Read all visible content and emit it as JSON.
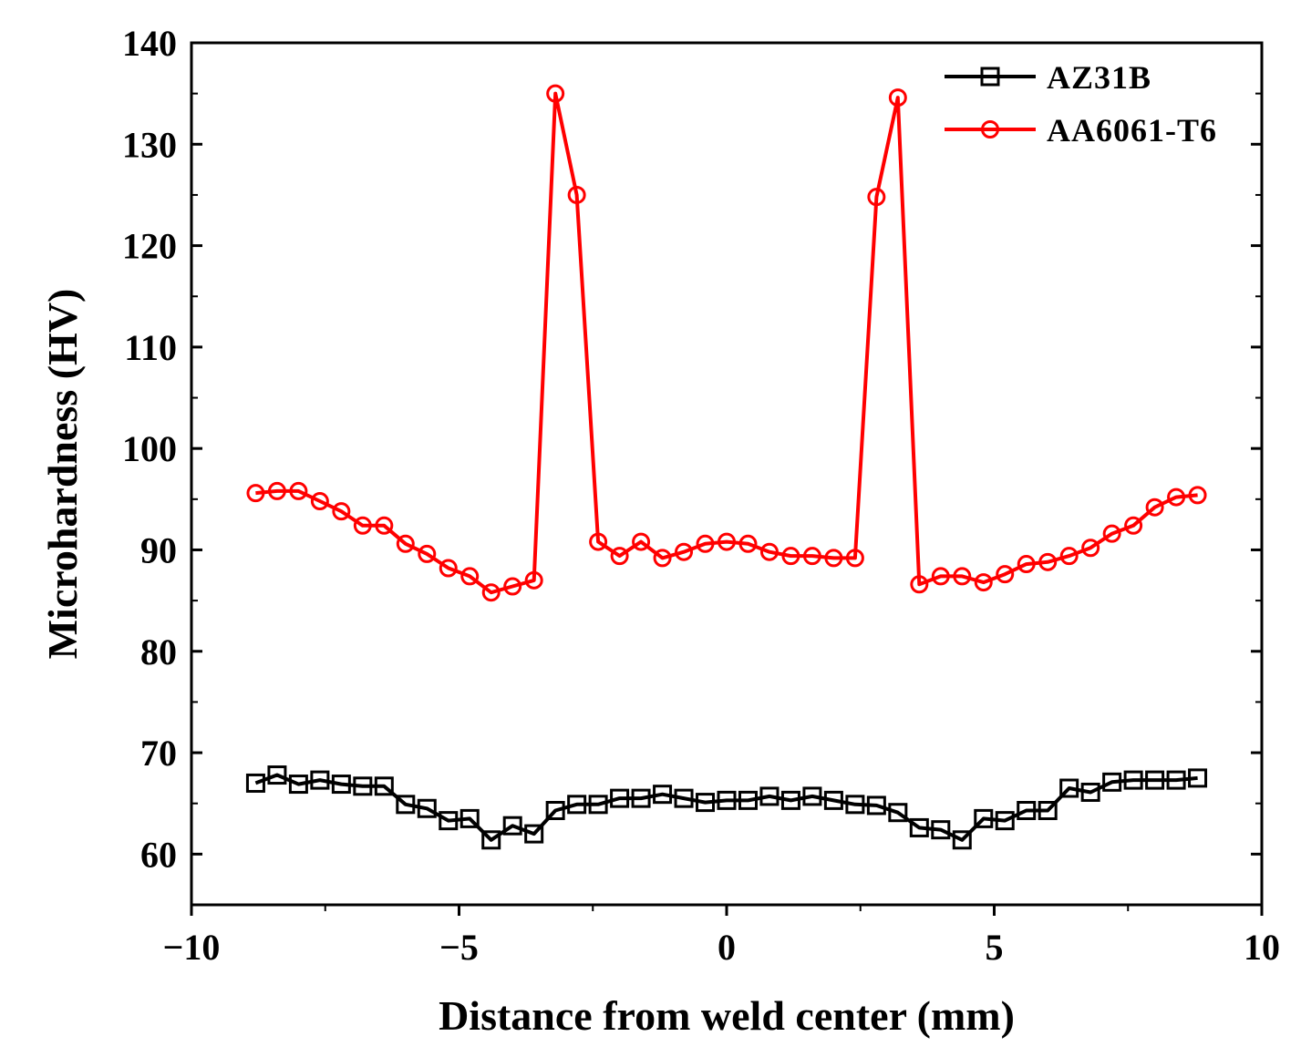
{
  "chart_data": {
    "type": "line",
    "title": "",
    "xlabel": "Distance from weld center (mm)",
    "ylabel": "Microhardness (HV)",
    "xlim": [
      -10,
      10
    ],
    "ylim": [
      55,
      140
    ],
    "x_ticks": [
      -10,
      -5,
      0,
      5,
      10
    ],
    "x_tick_labels": [
      "−10",
      "−5",
      "0",
      "5",
      "10"
    ],
    "y_ticks": [
      60,
      70,
      80,
      90,
      100,
      110,
      120,
      130,
      140
    ],
    "y_tick_labels": [
      "60",
      "70",
      "80",
      "90",
      "100",
      "110",
      "120",
      "130",
      "140"
    ],
    "grid": false,
    "legend_position": "top-right",
    "series": [
      {
        "name": "AZ31B",
        "color": "#000000",
        "marker": "square",
        "x": [
          -8.8,
          -8.4,
          -8.0,
          -7.6,
          -7.2,
          -6.8,
          -6.4,
          -6.0,
          -5.6,
          -5.2,
          -4.8,
          -4.4,
          -4.0,
          -3.6,
          -3.2,
          -2.8,
          -2.4,
          -2.0,
          -1.6,
          -1.2,
          -0.8,
          -0.4,
          0.0,
          0.4,
          0.8,
          1.2,
          1.6,
          2.0,
          2.4,
          2.8,
          3.2,
          3.6,
          4.0,
          4.4,
          4.8,
          5.2,
          5.6,
          6.0,
          6.4,
          6.8,
          7.2,
          7.6,
          8.0,
          8.4,
          8.8
        ],
        "values": [
          67.0,
          67.8,
          66.9,
          67.3,
          66.9,
          66.7,
          66.7,
          64.9,
          64.5,
          63.3,
          63.5,
          61.4,
          62.8,
          62.0,
          64.3,
          64.9,
          64.9,
          65.5,
          65.5,
          65.9,
          65.5,
          65.1,
          65.3,
          65.3,
          65.7,
          65.3,
          65.7,
          65.3,
          64.9,
          64.8,
          64.1,
          62.6,
          62.4,
          61.4,
          63.5,
          63.3,
          64.3,
          64.3,
          66.5,
          66.1,
          67.1,
          67.3,
          67.3,
          67.3,
          67.5
        ]
      },
      {
        "name": "AA6061-T6",
        "color": "#ff0000",
        "marker": "circle",
        "x": [
          -8.8,
          -8.4,
          -8.0,
          -7.6,
          -7.2,
          -6.8,
          -6.4,
          -6.0,
          -5.6,
          -5.2,
          -4.8,
          -4.4,
          -4.0,
          -3.6,
          -3.2,
          -2.8,
          -2.4,
          -2.0,
          -1.6,
          -1.2,
          -0.8,
          -0.4,
          0.0,
          0.4,
          0.8,
          1.2,
          1.6,
          2.0,
          2.4,
          2.8,
          3.2,
          3.6,
          4.0,
          4.4,
          4.8,
          5.2,
          5.6,
          6.0,
          6.4,
          6.8,
          7.2,
          7.6,
          8.0,
          8.4,
          8.8
        ],
        "values": [
          95.6,
          95.8,
          95.8,
          94.8,
          93.8,
          92.4,
          92.4,
          90.6,
          89.6,
          88.2,
          87.4,
          85.8,
          86.4,
          87.0,
          135.0,
          125.0,
          90.8,
          89.4,
          90.8,
          89.2,
          89.8,
          90.6,
          90.8,
          90.6,
          89.8,
          89.4,
          89.4,
          89.2,
          89.2,
          124.8,
          134.6,
          86.6,
          87.4,
          87.4,
          86.8,
          87.6,
          88.6,
          88.8,
          89.4,
          90.2,
          91.6,
          92.4,
          94.2,
          95.2,
          95.4
        ]
      }
    ]
  }
}
